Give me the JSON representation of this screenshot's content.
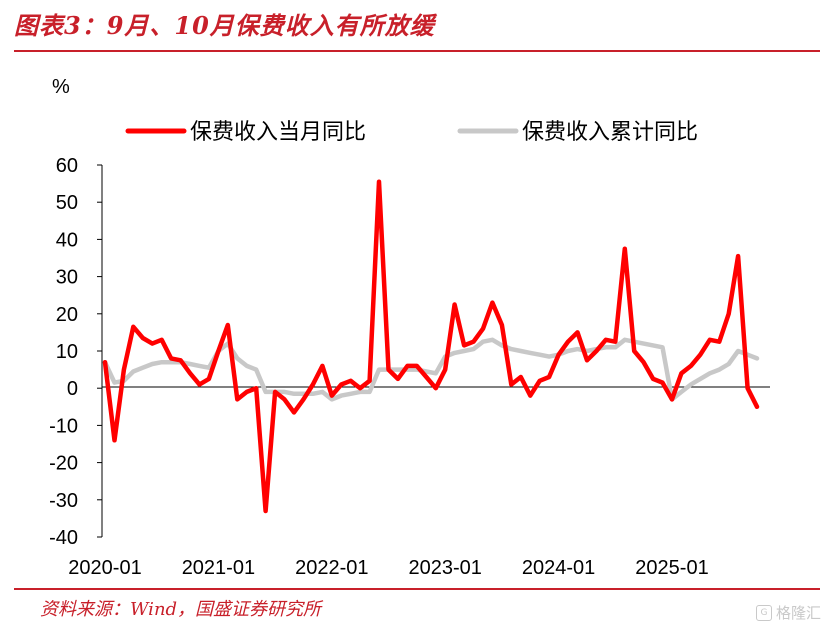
{
  "header": {
    "title": "图表3：9月、10月保费收入有所放缓"
  },
  "footer": {
    "source": "资料来源：Wind，国盛证券研究所",
    "watermark": "格隆汇"
  },
  "colors": {
    "accent": "#c8202a",
    "monthly": "#ff0000",
    "cumulative": "#c8c8c8"
  },
  "chart_data": {
    "type": "line",
    "title": "",
    "unit_label": "%",
    "ylim": [
      -40,
      60
    ],
    "yticks": [
      60,
      50,
      40,
      30,
      20,
      10,
      0,
      -10,
      -20,
      -30,
      -40
    ],
    "xlabels": [
      "2020-01",
      "2021-01",
      "2022-01",
      "2023-01",
      "2024-01",
      "2025-01"
    ],
    "x_start": "2020-01",
    "x_end": "2025-10",
    "legend_position": "top",
    "grid": false,
    "series": [
      {
        "name": "保费收入当月同比",
        "values": [
          7,
          -14,
          5,
          16.5,
          13.5,
          12,
          13,
          8,
          7.5,
          4,
          1,
          2.5,
          10,
          17,
          -3,
          -1,
          0,
          -33,
          -1,
          -3,
          -6.5,
          -3,
          1,
          6,
          -2,
          1,
          2,
          0,
          2,
          55.5,
          5,
          2.5,
          6,
          6,
          3,
          0,
          5,
          22.5,
          11.5,
          12.5,
          16,
          23,
          17,
          1,
          3,
          -2,
          2,
          3,
          9,
          12.5,
          15,
          7.5,
          10,
          13,
          12.5,
          37.5,
          10,
          7,
          2.5,
          1.5,
          -3,
          4,
          6,
          9,
          13,
          12.5,
          20,
          35.5,
          0,
          -5
        ]
      },
      {
        "name": "保费收入累计同比",
        "values": [
          7,
          1.5,
          2,
          4.5,
          5.5,
          6.5,
          7,
          7,
          7,
          6.5,
          6,
          5.5,
          10,
          12,
          8,
          6,
          5,
          -1,
          -1,
          -1,
          -1.5,
          -1.5,
          -1.5,
          -1,
          -3,
          -2,
          -1.5,
          -1,
          -1,
          5,
          5,
          5,
          5,
          5,
          4.5,
          4,
          8.5,
          9.5,
          10,
          10.5,
          12.5,
          13,
          11.5,
          10.5,
          10,
          9.5,
          9,
          8.5,
          9,
          10,
          10.5,
          10,
          10.5,
          11,
          11,
          13,
          12.5,
          12,
          11.5,
          11,
          -3,
          -1,
          1,
          2.5,
          4,
          5,
          6.5,
          10,
          9,
          8
        ]
      }
    ]
  }
}
